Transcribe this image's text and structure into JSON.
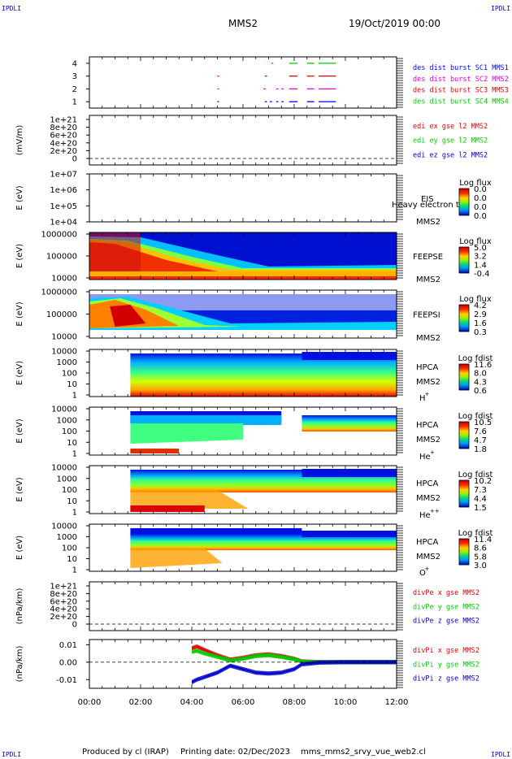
{
  "header": {
    "corner": "IPDLI",
    "mission": "MMS2",
    "date": "19/Oct/2019 00:00"
  },
  "footer": {
    "produced_by": "Produced by cl (IRAP)",
    "printing_date": "Printing date: 02/Dec/2023",
    "script_name": "mms_mms2_srvy_vue_web2.cl"
  },
  "colors": {
    "mms1": "#0000ff",
    "mms2": "#e000e0",
    "mms3": "#e00000",
    "mms4": "#00cc00",
    "x": "#e00000",
    "y": "#00cc00",
    "z": "#0000cc"
  },
  "chart_data": {
    "type": "multi-panel time series",
    "x_axis": {
      "range": [
        "00:00",
        "12:00"
      ],
      "ticks": [
        "00:00",
        "02:00",
        "04:00",
        "06:00",
        "08:00",
        "10:00",
        "12:00"
      ]
    },
    "panels": [
      {
        "id": "burst",
        "type": "timeline",
        "yticks": [
          "1",
          "2",
          "3",
          "4"
        ],
        "ylim": [
          0.5,
          4.5
        ],
        "legend": [
          {
            "text": "des dist burst SC1 MMS1",
            "color": "#0000ff"
          },
          {
            "text": "des dist burst SC2 MMS2",
            "color": "#e000e0"
          },
          {
            "text": "des dist burst SC3 MMS3",
            "color": "#e00000"
          },
          {
            "text": "des dist burst SC4 MMS4",
            "color": "#00cc00"
          }
        ],
        "intervals": [
          {
            "y": 4,
            "color": "#00cc00",
            "ranges": [
              [
                7.1,
                7.15
              ],
              [
                7.8,
                8.1
              ],
              [
                8.5,
                8.75
              ],
              [
                8.95,
                9.6
              ]
            ]
          },
          {
            "y": 3,
            "color": "#e00000",
            "ranges": [
              [
                5.0,
                5.03
              ],
              [
                6.85,
                6.9
              ],
              [
                7.8,
                8.1
              ],
              [
                8.5,
                8.75
              ],
              [
                8.95,
                9.6
              ]
            ]
          },
          {
            "y": 2,
            "color": "#e000e0",
            "ranges": [
              [
                5.0,
                5.03
              ],
              [
                6.8,
                6.85
              ],
              [
                7.3,
                7.35
              ],
              [
                7.5,
                7.55
              ],
              [
                7.8,
                8.1
              ],
              [
                8.5,
                8.75
              ],
              [
                8.95,
                9.6
              ]
            ]
          },
          {
            "y": 1,
            "color": "#0000ff",
            "ranges": [
              [
                5.0,
                5.03
              ],
              [
                6.85,
                6.9
              ],
              [
                7.05,
                7.1
              ],
              [
                7.3,
                7.35
              ],
              [
                7.5,
                7.55
              ],
              [
                7.8,
                8.1
              ],
              [
                8.5,
                8.75
              ],
              [
                8.95,
                9.6
              ]
            ]
          }
        ]
      },
      {
        "id": "edi",
        "type": "line",
        "ylabel": "(mV/m)",
        "yticks": [
          "1e+21",
          "8e+20",
          "6e+20",
          "4e+20",
          "2e+20",
          "0"
        ],
        "legend": [
          {
            "text": "edi ex gse l2 MMS2",
            "color": "#e00000"
          },
          {
            "text": "edi ey gse l2 MMS2",
            "color": "#00cc00"
          },
          {
            "text": "edi ez gse l2 MMS2",
            "color": "#0000cc"
          }
        ]
      },
      {
        "id": "eis",
        "type": "spectrogram",
        "ylabel": "E (eV)",
        "yticks": [
          "1e+07",
          "1e+06",
          "1e+05",
          "1e+04"
        ],
        "label1": "EIS",
        "label2": "MMS2",
        "overlay_text": "Heavy electron to",
        "cbar_title": "Log flux",
        "cbar_ticks": [
          "0.0",
          "0.0",
          "0.0",
          "0.0"
        ]
      },
      {
        "id": "feepse",
        "type": "spectrogram",
        "ylabel": "E (eV)",
        "yticks": [
          "1000000",
          "100000",
          "10000"
        ],
        "label1": "FEEPSE",
        "label2": "MMS2",
        "cbar_title": "Log flux",
        "cbar_ticks": [
          "5.0",
          "3.2",
          "1.4",
          "-0.4"
        ]
      },
      {
        "id": "feepsi",
        "type": "spectrogram",
        "ylabel": "E (eV)",
        "yticks": [
          "1000000",
          "100000",
          "10000"
        ],
        "label1": "FEEPSI",
        "label2": "MMS2",
        "cbar_title": "Log flux",
        "cbar_ticks": [
          "4.2",
          "2.9",
          "1.6",
          "0.3"
        ]
      },
      {
        "id": "hpca_h",
        "type": "spectrogram",
        "ylabel": "E (eV)",
        "yticks": [
          "10000",
          "1000",
          "100",
          "10",
          "1"
        ],
        "label1": "HPCA",
        "label2": "MMS2",
        "species": "H",
        "species_charge": "+",
        "cbar_title": "Log fdist",
        "cbar_ticks": [
          "11.6",
          "8.0",
          "4.3",
          "0.6"
        ]
      },
      {
        "id": "hpca_he1",
        "type": "spectrogram",
        "ylabel": "E (eV)",
        "yticks": [
          "10000",
          "1000",
          "100",
          "10",
          "1"
        ],
        "label1": "HPCA",
        "label2": "MMS2",
        "species": "He",
        "species_charge": "+",
        "cbar_title": "Log fdist",
        "cbar_ticks": [
          "10.5",
          "7.6",
          "4.7",
          "1.8"
        ]
      },
      {
        "id": "hpca_he2",
        "type": "spectrogram",
        "ylabel": "E (eV)",
        "yticks": [
          "10000",
          "1000",
          "100",
          "10",
          "1"
        ],
        "label1": "HPCA",
        "label2": "MMS2",
        "species": "He",
        "species_charge": "++",
        "cbar_title": "Log fdist",
        "cbar_ticks": [
          "10.2",
          "7.3",
          "4.4",
          "1.5"
        ]
      },
      {
        "id": "hpca_o",
        "type": "spectrogram",
        "ylabel": "E (eV)",
        "yticks": [
          "10000",
          "1000",
          "100",
          "10",
          "1"
        ],
        "label1": "HPCA",
        "label2": "MMS2",
        "species": "O",
        "species_charge": "+",
        "cbar_title": "Log fdist",
        "cbar_ticks": [
          "11.4",
          "8.6",
          "5.8",
          "3.0"
        ]
      },
      {
        "id": "dive",
        "type": "line",
        "ylabel": "(nPa/km)",
        "yticks": [
          "1e+21",
          "8e+20",
          "6e+20",
          "4e+20",
          "2e+20",
          "0"
        ],
        "legend": [
          {
            "text": "divPe x gse MMS2",
            "color": "#e00000"
          },
          {
            "text": "divPe y gse MMS2",
            "color": "#00cc00"
          },
          {
            "text": "divPe z gse MMS2",
            "color": "#0000cc"
          }
        ]
      },
      {
        "id": "divi",
        "type": "line",
        "ylabel": "(nPa/km)",
        "yticks": [
          "0.01",
          "0.00",
          "-0.01"
        ],
        "ylim": [
          -0.015,
          0.013
        ],
        "legend": [
          {
            "text": "divPi x gse MMS2",
            "color": "#e00000"
          },
          {
            "text": "divPi y gse MMS2",
            "color": "#00cc00"
          },
          {
            "text": "divPi z gse MMS2",
            "color": "#0000cc"
          }
        ],
        "series": [
          {
            "name": "x",
            "color": "#e00000",
            "t": [
              4.0,
              4.2,
              4.5,
              5.0,
              5.5,
              6.0,
              6.5,
              7.0,
              7.5,
              8.0,
              8.3,
              9.0,
              10.0,
              11.0,
              12.0
            ],
            "y": [
              0.008,
              0.009,
              0.007,
              0.004,
              0.0015,
              0.0025,
              0.004,
              0.0045,
              0.0035,
              0.002,
              0.0005,
              0.0,
              0.0,
              0.0,
              0.0
            ]
          },
          {
            "name": "y",
            "color": "#00cc00",
            "t": [
              4.0,
              4.2,
              4.5,
              5.0,
              5.5,
              6.0,
              6.5,
              7.0,
              7.5,
              8.0,
              8.3,
              9.0,
              10.0,
              11.0,
              12.0
            ],
            "y": [
              0.006,
              0.0065,
              0.005,
              0.003,
              0.001,
              0.002,
              0.0035,
              0.004,
              0.003,
              0.0018,
              0.0003,
              0.0,
              0.0,
              0.0,
              0.0
            ]
          },
          {
            "name": "z",
            "color": "#0000cc",
            "t": [
              4.0,
              4.2,
              4.5,
              5.0,
              5.5,
              6.0,
              6.5,
              7.0,
              7.5,
              8.0,
              8.3,
              9.0,
              10.0,
              11.0,
              12.0
            ],
            "y": [
              -0.0115,
              -0.01,
              -0.0085,
              -0.006,
              -0.002,
              -0.004,
              -0.006,
              -0.0065,
              -0.006,
              -0.004,
              -0.0012,
              -0.0002,
              0.0,
              0.0,
              0.0
            ]
          }
        ]
      }
    ]
  }
}
